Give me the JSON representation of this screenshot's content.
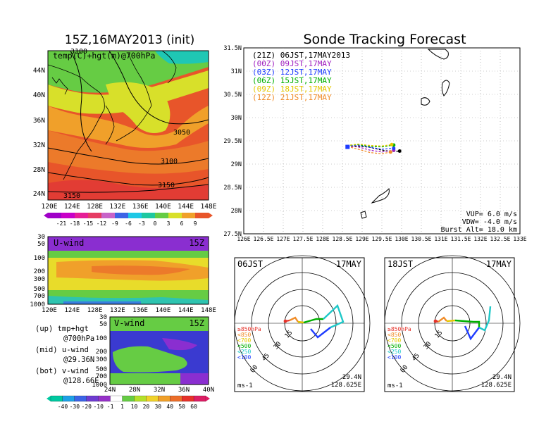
{
  "left": {
    "title": "15Z,16MAY2013 (init)",
    "map_label": "temp(C)+hgt(m)@700hPa",
    "contour_labels": [
      "3100",
      "3050",
      "3100",
      "3150",
      "3150"
    ],
    "lat_labels": [
      "44N",
      "40N",
      "36N",
      "32N",
      "28N",
      "24N"
    ],
    "lon_labels": [
      "120E",
      "124E",
      "128E",
      "132E",
      "136E",
      "140E",
      "144E",
      "148E"
    ],
    "temp_scale": [
      "-21",
      "-18",
      "-15",
      "-12",
      "-9",
      "-6",
      "-3",
      "0",
      "3",
      "6",
      "9"
    ],
    "uwind": {
      "title": "U-wind",
      "time": "15Z",
      "levels": [
        "30",
        "50",
        "100",
        "200",
        "300",
        "500",
        "700",
        "1000"
      ],
      "lon_labels": [
        "120E",
        "124E",
        "128E",
        "132E",
        "136E",
        "140E",
        "144E",
        "148E"
      ]
    },
    "vwind": {
      "title": "V-wind",
      "time": "15Z",
      "levels": [
        "30",
        "50",
        "100",
        "200",
        "300",
        "500",
        "700",
        "1000"
      ],
      "lat_labels": [
        "24N",
        "28N",
        "32N",
        "36N",
        "40N"
      ]
    },
    "legend": {
      "up": "(up) tmp+hgt",
      "up2": "@700hPa",
      "mid": "(mid) u-wind",
      "mid2": "@29.36N",
      "bot": "(bot) v-wind",
      "bot2": "@128.66E"
    },
    "wind_scale": [
      "-40",
      "-30",
      "-20",
      "-10",
      "-1",
      "1",
      "10",
      "20",
      "30",
      "40",
      "50",
      "60"
    ]
  },
  "right": {
    "title": "Sonde Tracking Forecast",
    "legend": [
      {
        "label": "(21Z) 06JST,17MAY2013",
        "color": "#000000"
      },
      {
        "label": "(00Z) 09JST,17MAY",
        "color": "#a020c0"
      },
      {
        "label": "(03Z) 12JST,17MAY",
        "color": "#1e3cff"
      },
      {
        "label": "(06Z) 15JST,17MAY",
        "color": "#00b000"
      },
      {
        "label": "(09Z) 18JST,17MAY",
        "color": "#e6c800"
      },
      {
        "label": "(12Z) 21JST,17MAY",
        "color": "#f08c28"
      }
    ],
    "lat_labels": [
      "31.5N",
      "31N",
      "30.5N",
      "30N",
      "29.5N",
      "29N",
      "28.5N",
      "28N",
      "27.5N"
    ],
    "lon_labels": [
      "126E",
      "126.5E",
      "127E",
      "127.5E",
      "128E",
      "128.5E",
      "129E",
      "129.5E",
      "130E",
      "130.5E",
      "131E",
      "131.5E",
      "132E",
      "132.5E",
      "133E"
    ],
    "params": [
      "VUP= 6.0 m/s",
      "VDW= -4.0 m/s",
      "Burst Alt= 18.0 km"
    ]
  },
  "polar1": {
    "time": "06JST",
    "date": "17MAY",
    "rings": [
      "15",
      "30",
      "45",
      "60"
    ],
    "levels": [
      "≥850hPa",
      "<850",
      "<700",
      "<500",
      "<250",
      "<100"
    ],
    "unit": "ms-1",
    "lat": "29.4N",
    "lon": "128.625E"
  },
  "polar2": {
    "time": "18JST",
    "date": "17MAY",
    "rings": [
      "15",
      "30",
      "45",
      "60"
    ],
    "levels": [
      "≥850hPa",
      "<850",
      "<700",
      "<500",
      "<250",
      "<100"
    ],
    "unit": "ms-1",
    "lat": "29.4N",
    "lon": "128.625E"
  },
  "chart_data": [
    {
      "type": "heatmap",
      "title": "15Z,16MAY2013 (init)",
      "variable": "temp(C)+hgt(m)@700hPa",
      "xlim": [
        "120E",
        "148E"
      ],
      "ylim": [
        "22N",
        "46N"
      ],
      "color_scale": [
        "-21",
        "-18",
        "-15",
        "-12",
        "-9",
        "-6",
        "-3",
        "0",
        "3",
        "6",
        "9"
      ]
    },
    {
      "type": "heatmap",
      "title": "U-wind",
      "ylevels_hPa": [
        30,
        50,
        100,
        200,
        300,
        500,
        700,
        1000
      ]
    },
    {
      "type": "heatmap",
      "title": "V-wind",
      "ylevels_hPa": [
        30,
        50,
        100,
        200,
        300,
        500,
        700,
        1000
      ],
      "color_scale": [
        "-40",
        "-30",
        "-20",
        "-10",
        "-1",
        "1",
        "10",
        "20",
        "30",
        "40",
        "50",
        "60"
      ]
    },
    {
      "type": "line",
      "title": "Sonde Tracking Forecast",
      "xlim": [
        126,
        133
      ],
      "ylim": [
        27.5,
        31.5
      ],
      "series": [
        {
          "name": "(21Z) 06JST,17MAY2013",
          "color": "#000000",
          "points": [
            [
              128.63,
              29.37
            ],
            [
              128.9,
              29.39
            ],
            [
              129.2,
              29.36
            ],
            [
              129.5,
              29.3
            ],
            [
              129.75,
              29.27
            ],
            [
              129.95,
              29.28
            ]
          ]
        },
        {
          "name": "(00Z) 09JST,17MAY",
          "color": "#a020c0",
          "points": [
            [
              128.63,
              29.38
            ],
            [
              128.9,
              29.37
            ],
            [
              129.2,
              29.3
            ],
            [
              129.5,
              29.26
            ],
            [
              129.8,
              29.3
            ]
          ]
        },
        {
          "name": "(03Z) 12JST,17MAY",
          "color": "#1e3cff",
          "points": [
            [
              128.62,
              29.39
            ],
            [
              128.9,
              29.41
            ],
            [
              129.2,
              29.36
            ],
            [
              129.5,
              29.32
            ],
            [
              129.8,
              29.34
            ]
          ]
        },
        {
          "name": "(06Z) 15JST,17MAY",
          "color": "#00b000",
          "points": [
            [
              128.61,
              29.4
            ],
            [
              128.9,
              29.42
            ],
            [
              129.2,
              29.38
            ],
            [
              129.5,
              29.37
            ],
            [
              129.8,
              29.41
            ]
          ]
        },
        {
          "name": "(09Z) 18JST,17MAY",
          "color": "#e6c800",
          "points": [
            [
              128.61,
              29.4
            ],
            [
              128.9,
              29.43
            ],
            [
              129.2,
              29.4
            ],
            [
              129.5,
              29.39
            ],
            [
              129.75,
              29.42
            ]
          ]
        },
        {
          "name": "(12Z) 21JST,17MAY",
          "color": "#f08c28",
          "points": [
            [
              128.63,
              29.38
            ],
            [
              128.9,
              29.32
            ],
            [
              129.2,
              29.25
            ],
            [
              129.5,
              29.22
            ],
            [
              129.72,
              29.26
            ]
          ]
        }
      ]
    }
  ]
}
